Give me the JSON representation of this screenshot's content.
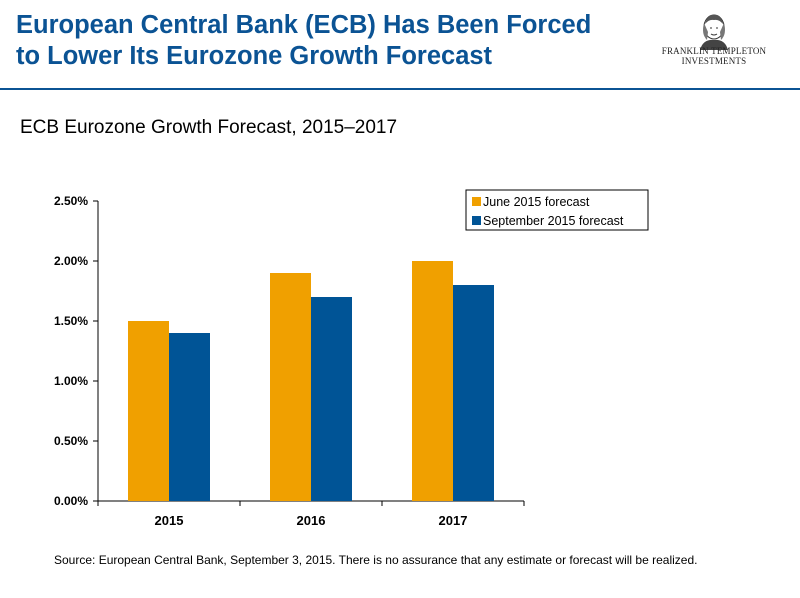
{
  "header": {
    "title_line1": "European Central Bank (ECB) Has Been Forced",
    "title_line2": "to Lower Its Eurozone Growth Forecast"
  },
  "logo": {
    "line1": "FRANKLIN TEMPLETON",
    "line2": "INVESTMENTS"
  },
  "chart_title": "ECB Eurozone Growth Forecast, 2015–2017",
  "chart_data": {
    "type": "bar",
    "categories": [
      "2015",
      "2016",
      "2017"
    ],
    "series": [
      {
        "name": "June 2015 forecast",
        "values": [
          1.5,
          1.9,
          2.0
        ],
        "color": "#f0a000"
      },
      {
        "name": "September 2015 forecast",
        "values": [
          1.4,
          1.7,
          1.8
        ],
        "color": "#005496"
      }
    ],
    "ylim": [
      0,
      2.5
    ],
    "yticks": [
      "0.00%",
      "0.50%",
      "1.00%",
      "1.50%",
      "2.00%",
      "2.50%"
    ],
    "grid": false,
    "legend": "top-right"
  },
  "source": "Source: European Central Bank, September 3, 2015. There is no assurance that any estimate or forecast will be realized."
}
